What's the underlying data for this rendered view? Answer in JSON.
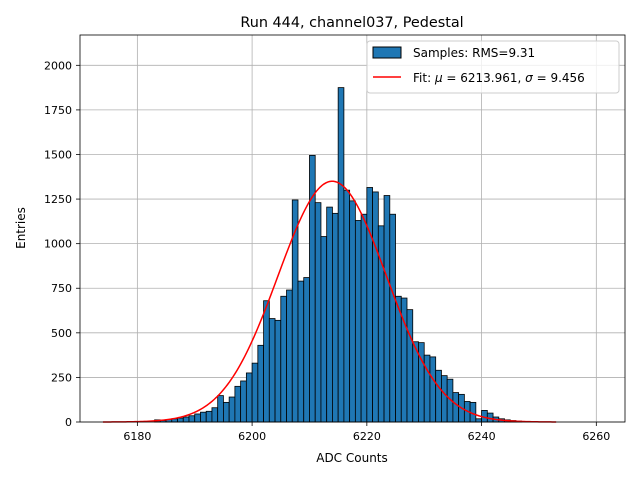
{
  "chart_data": {
    "type": "bar",
    "title": "Run 444, channel037, Pedestal",
    "xlabel": "ADC Counts",
    "ylabel": "Entries",
    "xlim": [
      6170,
      6265
    ],
    "ylim": [
      0,
      2170
    ],
    "xticks": [
      6180,
      6200,
      6220,
      6240,
      6260
    ],
    "yticks": [
      0,
      250,
      500,
      750,
      1000,
      1250,
      1500,
      1750,
      2000
    ],
    "grid": true,
    "legend_position": "top-right",
    "colors": {
      "bar": "#1f77b4",
      "bar_edge": "#000000",
      "fit": "#ff0000",
      "grid": "#b0b0b0"
    },
    "histogram": {
      "name": "Samples: RMS=9.31",
      "bin_start": 6183,
      "bin_width": 1,
      "counts": [
        12,
        8,
        14,
        18,
        22,
        28,
        35,
        45,
        55,
        60,
        80,
        148,
        110,
        140,
        200,
        230,
        275,
        330,
        430,
        680,
        580,
        570,
        705,
        740,
        1245,
        790,
        810,
        1495,
        1230,
        1040,
        1205,
        1170,
        1875,
        1300,
        1240,
        1130,
        1165,
        1315,
        1290,
        1100,
        1270,
        1165,
        705,
        695,
        630,
        450,
        445,
        375,
        365,
        290,
        260,
        240,
        165,
        155,
        115,
        110,
        18,
        65,
        50,
        28,
        18,
        12,
        8,
        5
      ]
    },
    "fit": {
      "name_parts": [
        "Fit: ",
        "μ",
        " = 6213.961, ",
        "σ",
        " = 9.456"
      ],
      "mu": 6213.961,
      "sigma": 9.456,
      "amplitude": 1350,
      "x_range": [
        6174,
        6253
      ]
    }
  }
}
